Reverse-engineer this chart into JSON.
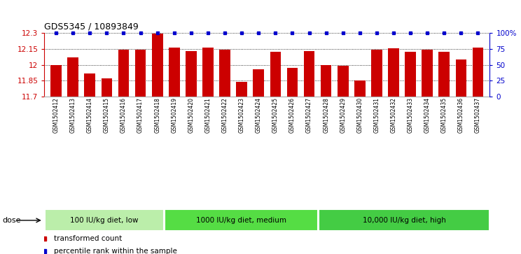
{
  "title": "GDS5345 / 10893849",
  "samples": [
    "GSM1502412",
    "GSM1502413",
    "GSM1502414",
    "GSM1502415",
    "GSM1502416",
    "GSM1502417",
    "GSM1502418",
    "GSM1502419",
    "GSM1502420",
    "GSM1502421",
    "GSM1502422",
    "GSM1502423",
    "GSM1502424",
    "GSM1502425",
    "GSM1502426",
    "GSM1502427",
    "GSM1502428",
    "GSM1502429",
    "GSM1502430",
    "GSM1502431",
    "GSM1502432",
    "GSM1502433",
    "GSM1502434",
    "GSM1502435",
    "GSM1502436",
    "GSM1502437"
  ],
  "bar_values": [
    12.0,
    12.07,
    11.92,
    11.87,
    12.145,
    12.14,
    12.295,
    12.16,
    12.13,
    12.165,
    12.145,
    11.84,
    11.96,
    12.125,
    11.97,
    12.13,
    12.0,
    11.99,
    11.85,
    12.145,
    12.155,
    12.125,
    12.145,
    12.125,
    12.05,
    12.165
  ],
  "bar_color": "#cc0000",
  "percentile_color": "#0000cc",
  "ylim": [
    11.7,
    12.3
  ],
  "yticks": [
    11.7,
    11.85,
    12.0,
    12.15,
    12.3
  ],
  "ytick_labels": [
    "11.7",
    "11.85",
    "12",
    "12.15",
    "12.3"
  ],
  "right_yticks": [
    0,
    25,
    50,
    75,
    100
  ],
  "right_ytick_labels": [
    "0",
    "25",
    "50",
    "75",
    "100%"
  ],
  "groups": [
    {
      "label": "100 IU/kg diet, low",
      "start": 0,
      "end": 7
    },
    {
      "label": "1000 IU/kg diet, medium",
      "start": 7,
      "end": 16
    },
    {
      "label": "10,000 IU/kg diet, high",
      "start": 16,
      "end": 26
    }
  ],
  "group_colors": [
    "#bbeeaa",
    "#66dd55",
    "#44cc44"
  ],
  "dose_label": "dose",
  "legend_bar_label": "transformed count",
  "legend_dot_label": "percentile rank within the sample"
}
